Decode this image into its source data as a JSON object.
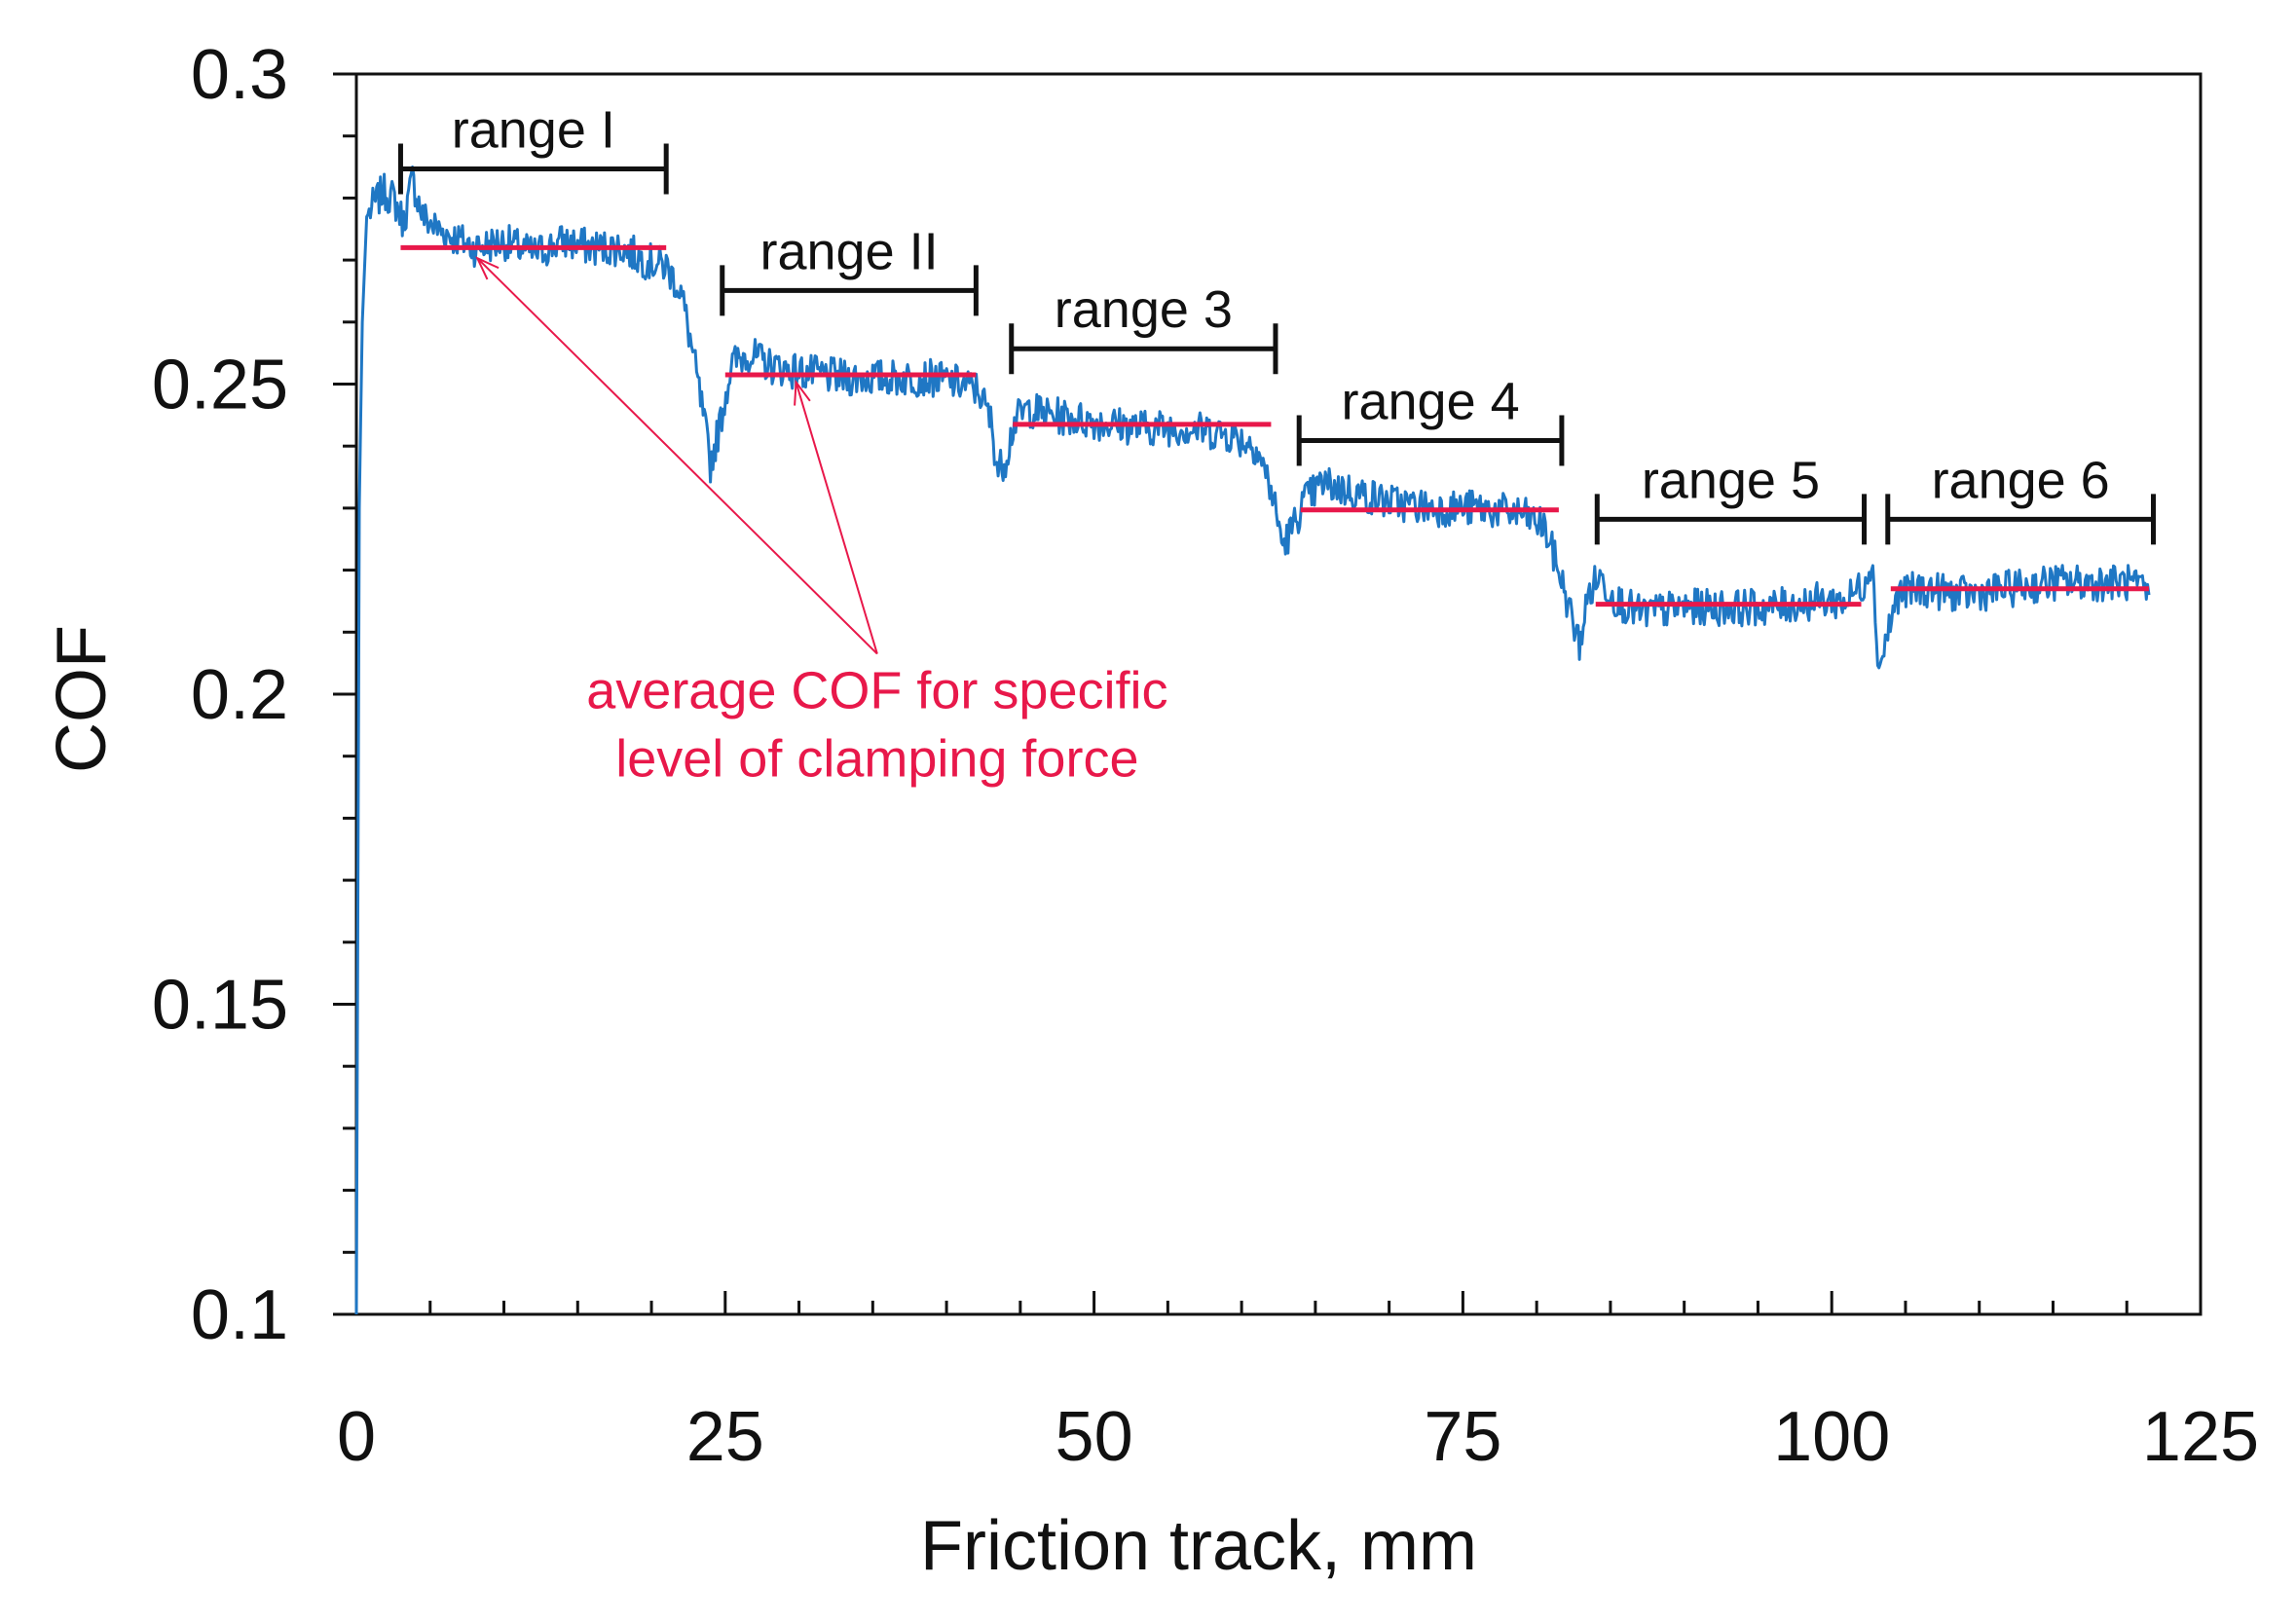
{
  "chart_data": {
    "type": "line",
    "title": "",
    "xlabel": "Friction track, mm",
    "ylabel": "COF",
    "xlim": [
      0,
      125
    ],
    "ylim": [
      0.1,
      0.3
    ],
    "xticks": [
      0,
      25,
      50,
      75,
      100,
      125
    ],
    "yticks": [
      0.1,
      0.15,
      0.2,
      0.25,
      0.3
    ],
    "ytick_labels": [
      "0.1",
      "0.15",
      "0.2",
      "0.25",
      "0.3"
    ],
    "x_minor_step": 5,
    "y_minor_step": 0.01,
    "grid": false,
    "series": [
      {
        "name": "COF",
        "color": "#1f77c4",
        "points": [
          [
            0,
            0.1
          ],
          [
            0.2,
            0.23
          ],
          [
            0.4,
            0.26
          ],
          [
            0.7,
            0.277
          ],
          [
            1.2,
            0.279
          ],
          [
            1.8,
            0.281
          ],
          [
            2.5,
            0.28
          ],
          [
            3.2,
            0.276
          ],
          [
            3.8,
            0.283
          ],
          [
            4.5,
            0.277
          ],
          [
            5.5,
            0.275
          ],
          [
            8,
            0.272
          ],
          [
            10,
            0.273
          ],
          [
            12,
            0.271
          ],
          [
            14,
            0.273
          ],
          [
            16,
            0.272
          ],
          [
            18,
            0.272
          ],
          [
            19.5,
            0.27
          ],
          [
            21,
            0.269
          ],
          [
            22,
            0.265
          ],
          [
            22.8,
            0.255
          ],
          [
            23.5,
            0.245
          ],
          [
            24,
            0.237
          ],
          [
            24.6,
            0.243
          ],
          [
            25.4,
            0.253
          ],
          [
            26.5,
            0.255
          ],
          [
            28,
            0.253
          ],
          [
            30,
            0.252
          ],
          [
            33,
            0.251
          ],
          [
            36,
            0.251
          ],
          [
            39,
            0.251
          ],
          [
            41,
            0.25
          ],
          [
            42.2,
            0.249
          ],
          [
            43,
            0.244
          ],
          [
            43.5,
            0.236
          ],
          [
            44,
            0.238
          ],
          [
            44.6,
            0.244
          ],
          [
            45.5,
            0.246
          ],
          [
            47,
            0.245
          ],
          [
            50,
            0.244
          ],
          [
            53,
            0.243
          ],
          [
            56,
            0.243
          ],
          [
            59,
            0.242
          ],
          [
            61,
            0.24
          ],
          [
            62,
            0.233
          ],
          [
            62.8,
            0.224
          ],
          [
            63.5,
            0.227
          ],
          [
            64.2,
            0.231
          ],
          [
            65.5,
            0.234
          ],
          [
            67,
            0.233
          ],
          [
            70,
            0.231
          ],
          [
            73,
            0.23
          ],
          [
            76,
            0.23
          ],
          [
            79,
            0.229
          ],
          [
            80.5,
            0.227
          ],
          [
            81.5,
            0.22
          ],
          [
            82.3,
            0.213
          ],
          [
            82.9,
            0.208
          ],
          [
            83.5,
            0.216
          ],
          [
            84.2,
            0.219
          ],
          [
            85.5,
            0.215
          ],
          [
            87,
            0.213
          ],
          [
            90,
            0.214
          ],
          [
            93,
            0.214
          ],
          [
            96,
            0.214
          ],
          [
            99,
            0.215
          ],
          [
            101,
            0.215
          ],
          [
            102.2,
            0.218
          ],
          [
            102.7,
            0.222
          ],
          [
            103.2,
            0.204
          ],
          [
            103.8,
            0.21
          ],
          [
            104.5,
            0.216
          ],
          [
            106,
            0.217
          ],
          [
            109,
            0.216
          ],
          [
            112,
            0.217
          ],
          [
            115,
            0.218
          ],
          [
            118,
            0.218
          ],
          [
            120,
            0.218
          ],
          [
            121.5,
            0.216
          ]
        ]
      }
    ],
    "average_lines": [
      {
        "x0": 3,
        "x1": 21,
        "y": 0.272
      },
      {
        "x0": 25,
        "x1": 42,
        "y": 0.2515
      },
      {
        "x0": 44.5,
        "x1": 62,
        "y": 0.2435
      },
      {
        "x0": 64,
        "x1": 81.5,
        "y": 0.2297
      },
      {
        "x0": 84,
        "x1": 102,
        "y": 0.2145
      },
      {
        "x0": 104,
        "x1": 121.5,
        "y": 0.217
      }
    ],
    "ranges": [
      {
        "label": "range I",
        "x0": 3,
        "x1": 21,
        "y": 0.2847
      },
      {
        "label": "range II",
        "x0": 24.8,
        "x1": 42,
        "y": 0.2651
      },
      {
        "label": "range 3",
        "x0": 44.4,
        "x1": 62.3,
        "y": 0.2557
      },
      {
        "label": "range 4",
        "x0": 63.9,
        "x1": 81.7,
        "y": 0.2409
      },
      {
        "label": "range 5",
        "x0": 84.1,
        "x1": 102.2,
        "y": 0.2282
      },
      {
        "label": "range 6",
        "x0": 103.8,
        "x1": 121.8,
        "y": 0.2282
      }
    ],
    "annotation": {
      "lines": [
        "average COF for specific",
        "level of clamping force"
      ],
      "color": "#e8184a",
      "avg_color": "#e8184a",
      "anchor": [
        35.3,
        0.2065
      ],
      "arrow_targets": [
        [
          8.2,
          0.2703
        ],
        [
          29.8,
          0.2503
        ]
      ]
    }
  }
}
